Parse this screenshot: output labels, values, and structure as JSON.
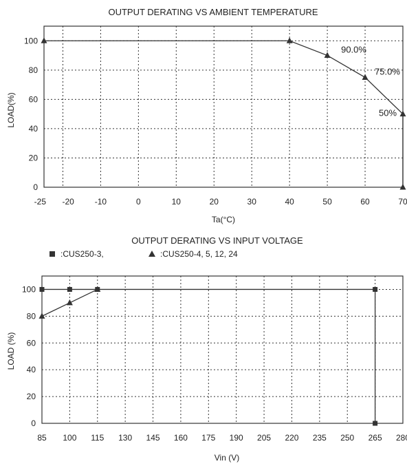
{
  "chart_data": [
    {
      "type": "line",
      "title": "OUTPUT DERATING VS AMBIENT TEMPERATURE",
      "xlabel": "Ta(°C)",
      "ylabel": "LOAD(%)",
      "xlim": [
        -25,
        70
      ],
      "ylim": [
        0,
        110
      ],
      "x_ticks": [
        -25,
        -20,
        -10,
        0,
        10,
        20,
        30,
        40,
        50,
        60,
        70
      ],
      "x_tick_labels": [
        "-25",
        "-20",
        "-10",
        "0",
        "10",
        "20",
        "30",
        "40",
        "50",
        "60",
        "70"
      ],
      "y_ticks": [
        0,
        20,
        40,
        60,
        80,
        100
      ],
      "y_tick_labels": [
        "0",
        "20",
        "40",
        "60",
        "80",
        "100"
      ],
      "grid": true,
      "series": [
        {
          "marker": "triangle",
          "x": [
            -25,
            40,
            50,
            60,
            70,
            70
          ],
          "y": [
            100,
            100,
            90,
            75,
            50,
            0
          ]
        }
      ],
      "annotations": [
        {
          "text": "90.0%",
          "x": 50,
          "y": 90
        },
        {
          "text": "75.0%",
          "x": 60,
          "y": 75
        },
        {
          "text": "50%",
          "x": 70,
          "y": 50
        }
      ]
    },
    {
      "type": "line",
      "title": "OUTPUT DERATING VS INPUT VOLTAGE",
      "xlabel": "Vin (V)",
      "ylabel": "LOAD (%)",
      "xlim": [
        85,
        280
      ],
      "ylim": [
        0,
        110
      ],
      "x_ticks": [
        85,
        100,
        115,
        130,
        145,
        160,
        175,
        190,
        205,
        220,
        235,
        250,
        265,
        280
      ],
      "x_tick_labels": [
        "85",
        "100",
        "115",
        "130",
        "145",
        "160",
        "175",
        "190",
        "205",
        "220",
        "235",
        "250",
        "265",
        "280"
      ],
      "y_ticks": [
        0,
        20,
        40,
        60,
        80,
        100
      ],
      "y_tick_labels": [
        "0",
        "20",
        "40",
        "60",
        "80",
        "100"
      ],
      "grid": true,
      "legend_position": "top-left",
      "series": [
        {
          "name": ":CUS250-3,",
          "marker": "square",
          "x": [
            85,
            100,
            115,
            265,
            265
          ],
          "y": [
            100,
            100,
            100,
            100,
            0
          ]
        },
        {
          "name": ":CUS250-4, 5, 12, 24",
          "marker": "triangle",
          "x": [
            85,
            100,
            115
          ],
          "y": [
            80,
            90,
            100
          ]
        }
      ]
    }
  ]
}
